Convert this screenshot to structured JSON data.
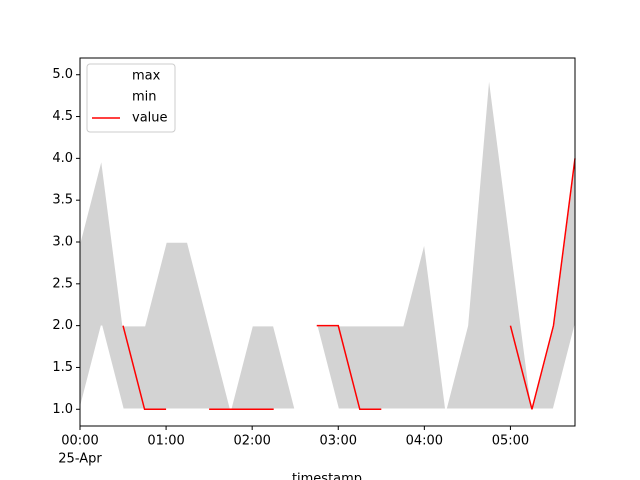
{
  "chart_data": {
    "type": "line",
    "x_label": "timestamp",
    "x": [
      "00:00",
      "00:15",
      "00:30",
      "00:45",
      "01:00",
      "01:15",
      "01:30",
      "01:45",
      "02:00",
      "02:15",
      "02:30",
      "02:45",
      "03:00",
      "03:15",
      "03:30",
      "03:45",
      "04:00",
      "04:15",
      "04:30",
      "04:45",
      "05:00",
      "05:15",
      "05:30",
      "05:45"
    ],
    "fill_between": [
      "max",
      "min"
    ],
    "fill_color": "#d3d3d3",
    "series": [
      {
        "name": "max",
        "color": "#ffffff",
        "values": [
          3,
          4,
          2,
          2,
          3,
          3,
          2,
          1,
          2,
          2,
          1,
          2,
          2,
          2,
          2,
          2,
          3,
          1,
          2,
          5,
          3,
          1,
          2,
          4
        ]
      },
      {
        "name": "min",
        "color": "#ffffff",
        "values": [
          1,
          2,
          1,
          1,
          1,
          1,
          1,
          1,
          1,
          1,
          1,
          2,
          1,
          1,
          1,
          1,
          1,
          1,
          1,
          1,
          1,
          1,
          1,
          2
        ]
      },
      {
        "name": "value",
        "color": "#ff0000",
        "values": [
          null,
          null,
          2,
          1,
          1,
          null,
          1,
          1,
          1,
          1,
          null,
          2,
          2,
          1,
          1,
          null,
          null,
          null,
          null,
          null,
          2,
          1,
          2,
          4
        ]
      }
    ],
    "xlim": [
      "00:00",
      "05:45"
    ],
    "xticks": [
      {
        "value": "00:00",
        "label": "00:00"
      },
      {
        "value": "01:00",
        "label": "01:00"
      },
      {
        "value": "02:00",
        "label": "02:00"
      },
      {
        "value": "03:00",
        "label": "03:00"
      },
      {
        "value": "04:00",
        "label": "04:00"
      },
      {
        "value": "05:00",
        "label": "05:00"
      }
    ],
    "x_date_label": "25-Apr",
    "ylim": [
      0.8,
      5.2
    ],
    "yticks": [
      {
        "value": 1,
        "label": "1.0"
      },
      1.5,
      {
        "value": 2,
        "label": "2.0"
      },
      2.5,
      {
        "value": 3,
        "label": "3.0"
      },
      3.5,
      {
        "value": 4,
        "label": "4.0"
      },
      4.5,
      {
        "value": 5,
        "label": "5.0"
      }
    ],
    "legend": "upper left"
  }
}
